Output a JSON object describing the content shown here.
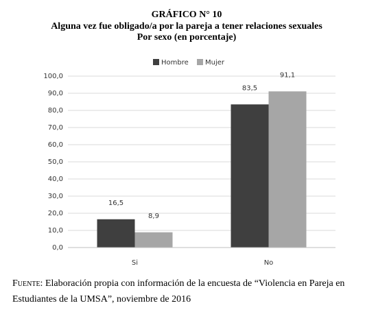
{
  "chart_data": {
    "type": "bar",
    "title": "GRÁFICO N° 10",
    "subtitle": "Alguna vez fue obligado/a por la pareja a tener relaciones sexuales",
    "subtitle2": "Por sexo (en porcentaje)",
    "categories": [
      "Si",
      "No"
    ],
    "series": [
      {
        "name": "Hombre",
        "color": "#3f3f3f",
        "values": [
          16.5,
          83.5
        ],
        "value_labels": [
          "16,5",
          "83,5"
        ]
      },
      {
        "name": "Mujer",
        "color": "#a6a6a6",
        "values": [
          8.9,
          91.1
        ],
        "value_labels": [
          "8,9",
          "91,1"
        ]
      }
    ],
    "ylim": [
      0,
      100
    ],
    "yticks": [
      {
        "value": 0,
        "label": "0,0"
      },
      {
        "value": 10,
        "label": "10,0"
      },
      {
        "value": 20,
        "label": "20,0"
      },
      {
        "value": 30,
        "label": "30,0"
      },
      {
        "value": 40,
        "label": "40,0"
      },
      {
        "value": 50,
        "label": "50,0"
      },
      {
        "value": 60,
        "label": "60,0"
      },
      {
        "value": 70,
        "label": "70,0"
      },
      {
        "value": 80,
        "label": "80,0"
      },
      {
        "value": 90,
        "label": "90,0"
      },
      {
        "value": 100,
        "label": "100,0"
      }
    ],
    "grid": true,
    "legend": "top",
    "source_label": "Fuente:",
    "source": "Elaboración propia con información de la encuesta de “Violencia en Pareja en Estudiantes de la UMSA”, noviembre de 2016"
  }
}
